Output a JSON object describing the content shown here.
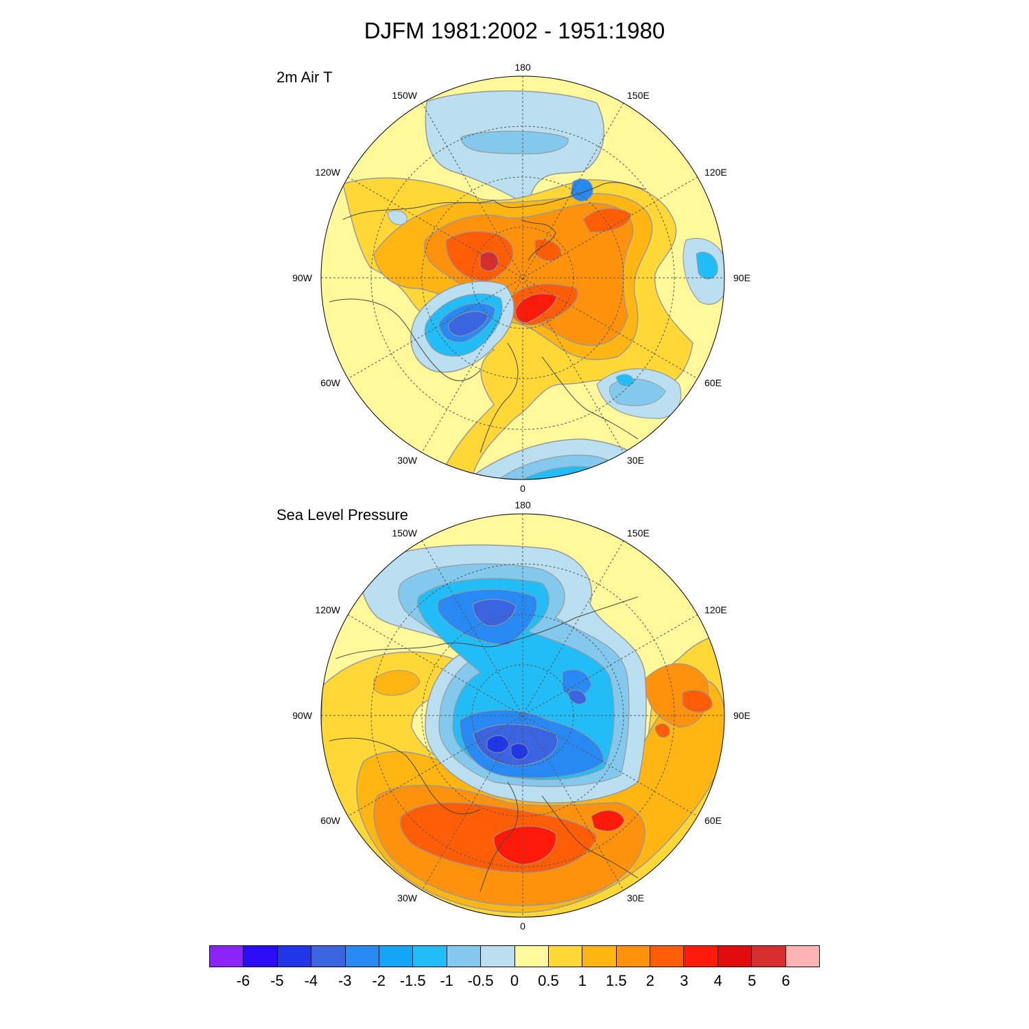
{
  "title": "DJFM 1981:2002 - 1951:1980",
  "panels": [
    {
      "label": "2m Air T",
      "lon_labels": {
        "deg180": "180",
        "w150": "150W",
        "e150": "150E",
        "w120": "120W",
        "e120": "120E",
        "w90": "90W",
        "e90": "90E",
        "w60": "60W",
        "e60": "60E",
        "w30": "30W",
        "e30": "30E",
        "deg0": "0"
      }
    },
    {
      "label": "Sea Level Pressure",
      "lon_labels": {
        "deg180": "180",
        "w150": "150W",
        "e150": "150E",
        "w120": "120W",
        "e120": "120E",
        "w90": "90W",
        "e90": "90E",
        "w60": "60W",
        "e60": "60E",
        "w30": "30W",
        "e30": "30E",
        "deg0": "0"
      }
    }
  ],
  "colorbar": {
    "colors": [
      "#8A23F5",
      "#2B0BF8",
      "#2136E6",
      "#3A64E0",
      "#2989F2",
      "#12A6F5",
      "#22BDF7",
      "#83C9EE",
      "#B9DFF0",
      "#FFF99B",
      "#FFD838",
      "#FFB612",
      "#FF920C",
      "#FF5E06",
      "#FF1A0A",
      "#E10B0B",
      "#D62D2F",
      "#FFB4B4"
    ],
    "ticks": [
      "-6",
      "-5",
      "-4",
      "-3",
      "-2",
      "-1.5",
      "-1",
      "-0.5",
      "0",
      "0.5",
      "1",
      "1.5",
      "2",
      "3",
      "4",
      "5",
      "6"
    ]
  }
}
